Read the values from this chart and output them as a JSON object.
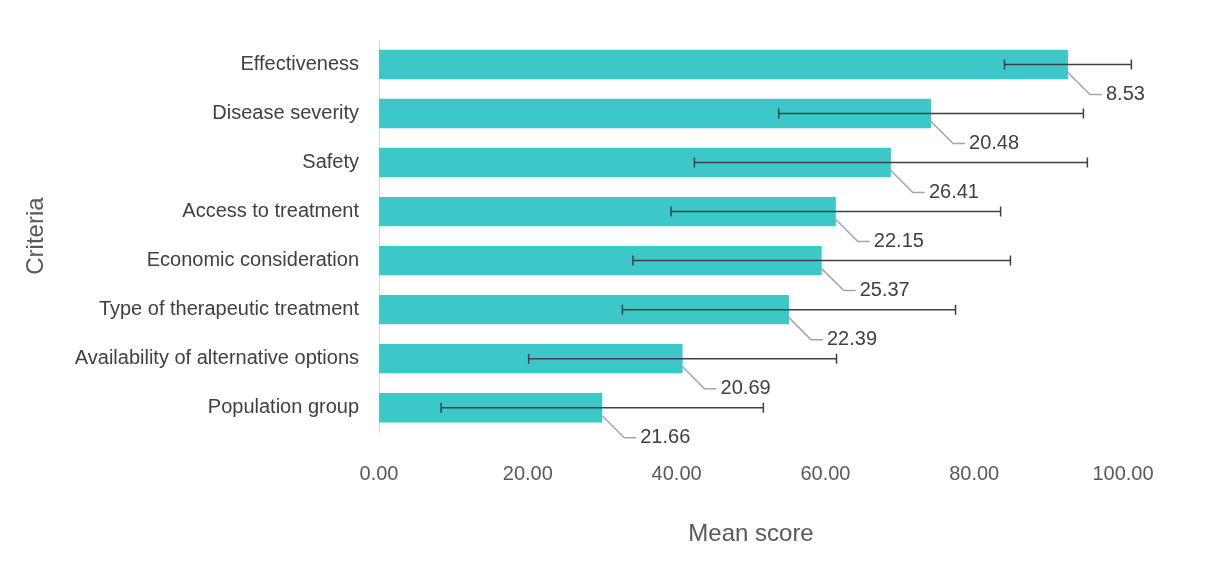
{
  "chart_data": {
    "type": "bar",
    "orientation": "horizontal",
    "xlabel": "Mean score",
    "ylabel": "Criteria",
    "categories": [
      "Effectiveness",
      "Disease severity",
      "Safety",
      "Access to treatment",
      "Economic consideration",
      "Type of therapeutic treatment",
      "Availability of alternative options",
      "Population group"
    ],
    "values": [
      92.6,
      74.2,
      68.8,
      61.4,
      59.5,
      55.1,
      40.8,
      30.0
    ],
    "errors": [
      8.53,
      20.48,
      26.41,
      22.15,
      25.37,
      22.39,
      20.69,
      21.66
    ],
    "annotations": [
      {
        "text": "8.53",
        "x": 92.6,
        "y": "Effectiveness"
      },
      {
        "text": "20.48",
        "x": 74.2,
        "y": "Disease severity"
      },
      {
        "text": "26.41",
        "x": 68.8,
        "y": "Safety"
      },
      {
        "text": "22.15",
        "x": 61.4,
        "y": "Access to treatment"
      },
      {
        "text": "25.37",
        "x": 59.5,
        "y": "Economic consideration"
      },
      {
        "text": "22.39",
        "x": 55.1,
        "y": "Type of therapeutic treatment"
      },
      {
        "text": "20.69",
        "x": 40.8,
        "y": "Availability of alternative options"
      },
      {
        "text": "21.66",
        "x": 30.0,
        "y": "Population group"
      }
    ],
    "color": "#3cc8c8",
    "xlim": [
      0,
      100
    ],
    "xticks": [
      {
        "value": 0,
        "label": "0.00"
      },
      {
        "value": 20,
        "label": "20.00"
      },
      {
        "value": 40,
        "label": "40.00"
      },
      {
        "value": 60,
        "label": "60.00"
      },
      {
        "value": 80,
        "label": "80.00"
      },
      {
        "value": 100,
        "label": "100.00"
      }
    ]
  }
}
